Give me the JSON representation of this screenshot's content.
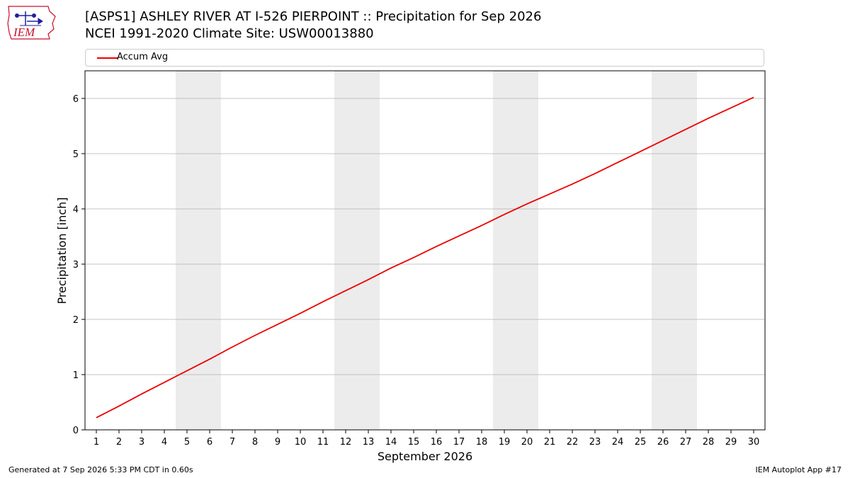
{
  "header": {
    "title": "[ASPS1] ASHLEY RIVER AT I-526 PIERPOINT :: Precipitation for Sep 2026",
    "subtitle": "NCEI 1991-2020 Climate Site: USW00013880",
    "logo_text": "IEM"
  },
  "footer": {
    "generated": "Generated at 7 Sep 2026 5:33 PM CDT in 0.60s",
    "app": "IEM Autoplot App #17"
  },
  "colors": {
    "line": "#ee0000",
    "weekend_band": "#ececec",
    "grid": "#b0b0b0",
    "logo_red": "#c8102e",
    "logo_blue": "#1f1fa0"
  },
  "chart_data": {
    "type": "line",
    "xlabel": "September 2026",
    "ylabel": "Precipitation [inch]",
    "ylim": [
      0,
      6.5
    ],
    "xlim": [
      0.5,
      30.5
    ],
    "x": [
      1,
      2,
      3,
      4,
      5,
      6,
      7,
      8,
      9,
      10,
      11,
      12,
      13,
      14,
      15,
      16,
      17,
      18,
      19,
      20,
      21,
      22,
      23,
      24,
      25,
      26,
      27,
      28,
      29,
      30
    ],
    "x_tick_labels": [
      "1",
      "2",
      "3",
      "4",
      "5",
      "6",
      "7",
      "8",
      "9",
      "10",
      "11",
      "12",
      "13",
      "14",
      "15",
      "16",
      "17",
      "18",
      "19",
      "20",
      "21",
      "22",
      "23",
      "24",
      "25",
      "26",
      "27",
      "28",
      "29",
      "30"
    ],
    "y_ticks": [
      0,
      1,
      2,
      3,
      4,
      5,
      6
    ],
    "y_tick_labels": [
      "0",
      "1",
      "2",
      "3",
      "4",
      "5",
      "6"
    ],
    "grid": "horizontal",
    "legend_position": "top",
    "weekend_bands": [
      [
        4.5,
        6.5
      ],
      [
        11.5,
        13.5
      ],
      [
        18.5,
        20.5
      ],
      [
        25.5,
        27.5
      ]
    ],
    "series": [
      {
        "name": "Accum Avg",
        "values": [
          0.22,
          0.43,
          0.65,
          0.86,
          1.07,
          1.28,
          1.5,
          1.71,
          1.91,
          2.11,
          2.32,
          2.52,
          2.72,
          2.93,
          3.12,
          3.32,
          3.51,
          3.7,
          3.9,
          4.09,
          4.27,
          4.45,
          4.64,
          4.84,
          5.04,
          5.24,
          5.44,
          5.64,
          5.83,
          6.02
        ]
      }
    ]
  }
}
